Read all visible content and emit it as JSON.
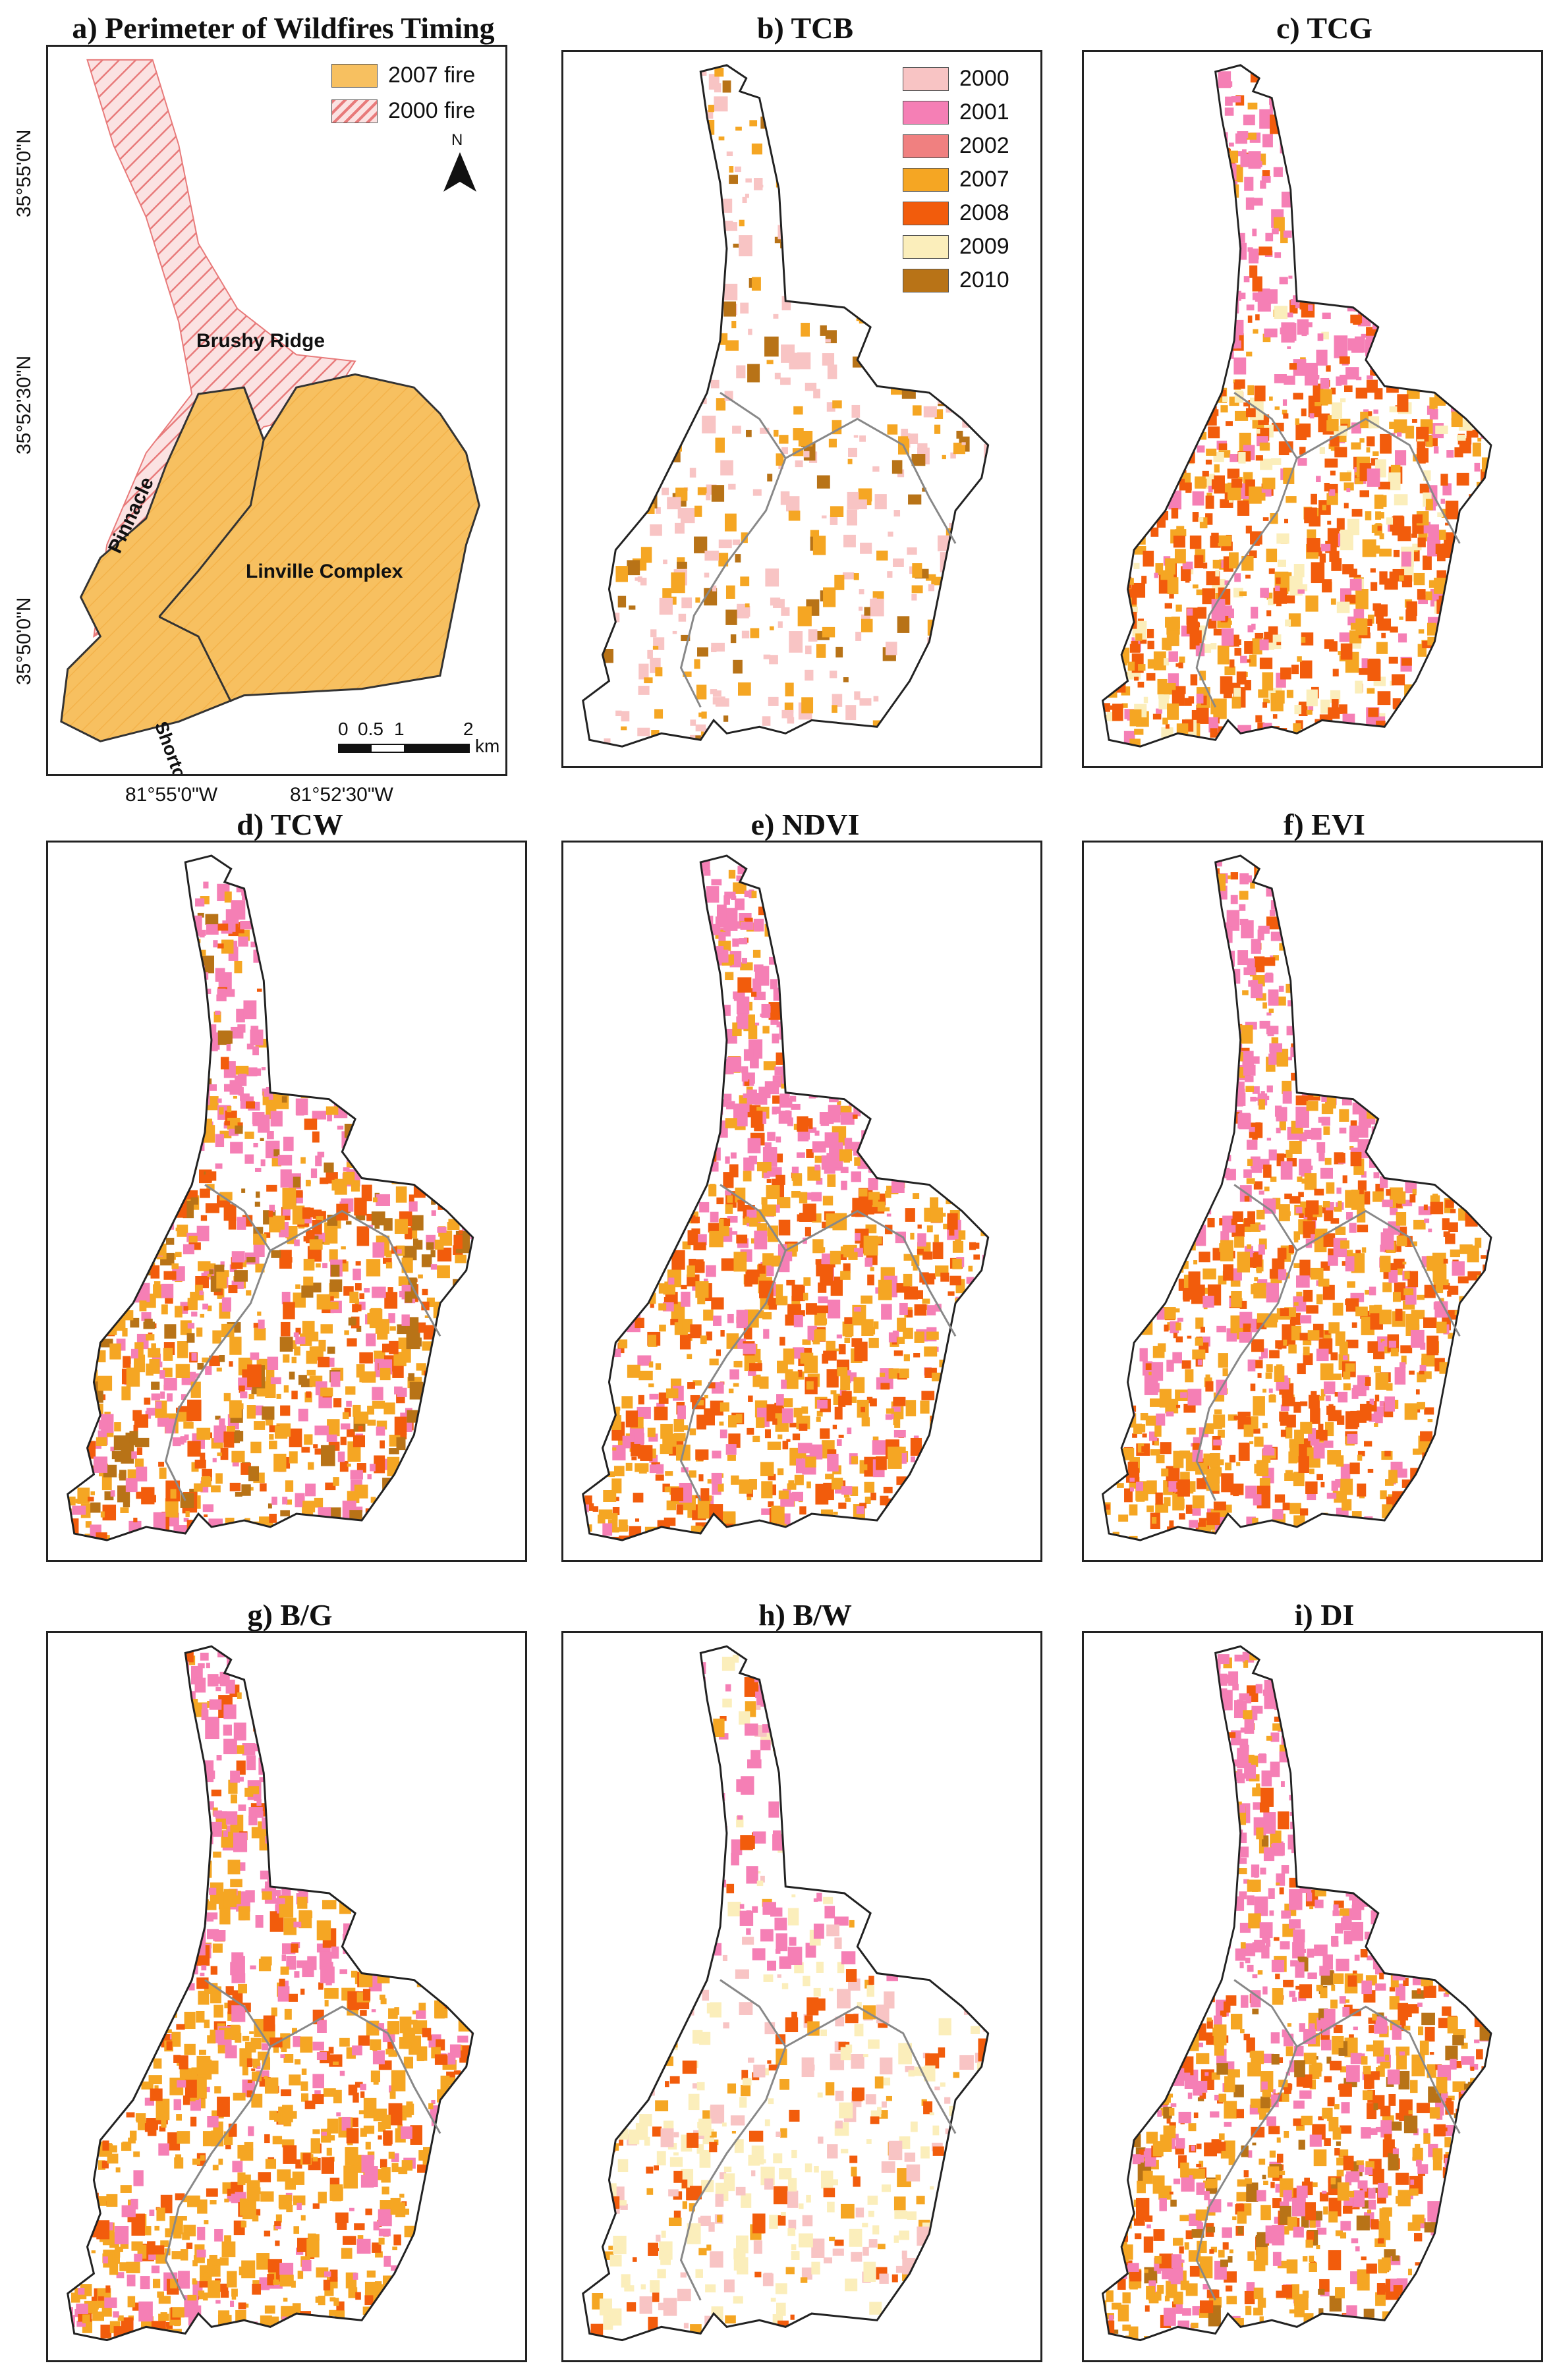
{
  "panels": [
    {
      "id": "a",
      "title": "a) Perimeter of Wildfires Timing"
    },
    {
      "id": "b",
      "title": "b) TCB"
    },
    {
      "id": "c",
      "title": "c) TCG"
    },
    {
      "id": "d",
      "title": "d) TCW"
    },
    {
      "id": "e",
      "title": "e) NDVI"
    },
    {
      "id": "f",
      "title": "f) EVI"
    },
    {
      "id": "g",
      "title": "g) B/G"
    },
    {
      "id": "h",
      "title": "h) B/W"
    },
    {
      "id": "i",
      "title": "i) DI"
    }
  ],
  "map_a": {
    "legend": [
      {
        "label": "2007 fire",
        "color": "#f7c060"
      },
      {
        "label": "2000 fire",
        "color": "#e87a7a",
        "pattern": "hatch"
      }
    ],
    "areas": [
      "Brushy Ridge",
      "Pinnacle",
      "Linville Complex",
      "Shortoff"
    ],
    "north_label": "N",
    "scale": {
      "ticks": [
        "0",
        "0.5",
        "1",
        "2"
      ],
      "unit": "km"
    },
    "x_ticks": [
      "81°55'0\"W",
      "81°52'30\"W"
    ],
    "y_ticks": [
      "35°55'0\"N",
      "35°52'30\"N",
      "35°50'0\"N"
    ]
  },
  "year_legend": [
    {
      "year": "2000",
      "color": "#f8c4c4"
    },
    {
      "year": "2001",
      "color": "#f57fb5"
    },
    {
      "year": "2002",
      "color": "#f08080"
    },
    {
      "year": "2007",
      "color": "#f5a623"
    },
    {
      "year": "2008",
      "color": "#f25c0c"
    },
    {
      "year": "2009",
      "color": "#fbeebb"
    },
    {
      "year": "2010",
      "color": "#b87317"
    }
  ],
  "colors": {
    "fire2007": "#f7c060",
    "fire2000": "#e87a7a",
    "outline": "#222222",
    "inner_line": "#888888"
  }
}
